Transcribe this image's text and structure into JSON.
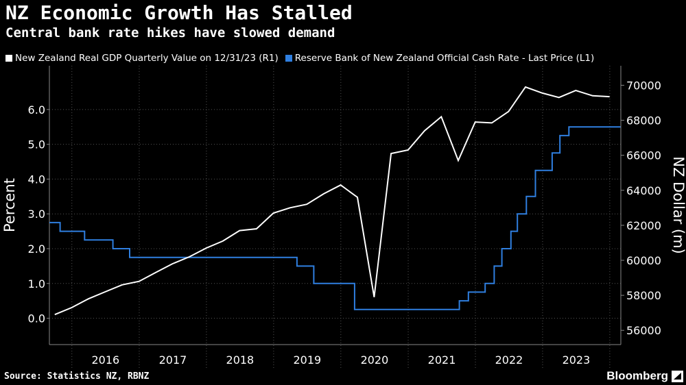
{
  "header": {
    "title": "NZ Economic Growth Has Stalled",
    "subtitle": "Central bank rate hikes have slowed demand"
  },
  "footer": {
    "source": "Source: Statistics NZ, RBNZ",
    "brand": "Bloomberg"
  },
  "colors": {
    "background": "#000000",
    "gdp": "#ffffff",
    "ocr": "#2f7fe0",
    "grid": "#555555",
    "text": "#ffffff"
  },
  "chart_data": {
    "type": "line",
    "title": "NZ Economic Growth Has Stalled",
    "subtitle": "Central bank rate hikes have slowed demand",
    "ylabel_left": "Percent",
    "ylabel_right": "NZ Dollar (m)",
    "ylim_left": [
      -0.6,
      7.1
    ],
    "ylim_right": [
      55500,
      70800
    ],
    "yticks_left": [
      "0.0",
      "1.0",
      "2.0",
      "3.0",
      "4.0",
      "5.0",
      "6.0"
    ],
    "yticks_right": [
      "56000",
      "58000",
      "60000",
      "62000",
      "64000",
      "66000",
      "68000",
      "70000"
    ],
    "x_range": [
      "2015-09-01",
      "2024-03-01"
    ],
    "x_labels": [
      "2016",
      "2017",
      "2018",
      "2019",
      "2020",
      "2021",
      "2022",
      "2023"
    ],
    "grid": true,
    "legend_placement": "top-left",
    "series": [
      {
        "name": "New Zealand Real GDP Quarterly Value on 12/31/23 (R1)",
        "axis": "right",
        "points": [
          [
            "2015-09-30",
            56900
          ],
          [
            "2015-12-31",
            57300
          ],
          [
            "2016-03-31",
            57800
          ],
          [
            "2016-06-30",
            58200
          ],
          [
            "2016-09-30",
            58600
          ],
          [
            "2016-12-31",
            58800
          ],
          [
            "2017-03-31",
            59300
          ],
          [
            "2017-06-30",
            59800
          ],
          [
            "2017-09-30",
            60200
          ],
          [
            "2017-12-31",
            60700
          ],
          [
            "2018-03-31",
            61100
          ],
          [
            "2018-06-30",
            61700
          ],
          [
            "2018-09-30",
            61800
          ],
          [
            "2018-12-31",
            62700
          ],
          [
            "2019-03-31",
            63000
          ],
          [
            "2019-06-30",
            63200
          ],
          [
            "2019-09-30",
            63800
          ],
          [
            "2019-12-31",
            64300
          ],
          [
            "2020-03-31",
            63600
          ],
          [
            "2020-06-30",
            57900
          ],
          [
            "2020-09-30",
            66100
          ],
          [
            "2020-12-31",
            66300
          ],
          [
            "2021-03-31",
            67400
          ],
          [
            "2021-06-30",
            68200
          ],
          [
            "2021-09-30",
            65700
          ],
          [
            "2021-12-31",
            67900
          ],
          [
            "2022-03-31",
            67850
          ],
          [
            "2022-06-30",
            68500
          ],
          [
            "2022-09-30",
            69900
          ],
          [
            "2022-12-31",
            69550
          ],
          [
            "2023-03-31",
            69300
          ],
          [
            "2023-06-30",
            69700
          ],
          [
            "2023-09-30",
            69400
          ],
          [
            "2023-12-31",
            69350
          ]
        ]
      },
      {
        "name": "Reserve Bank of New Zealand Official Cash Rate - Last Price (L1)",
        "axis": "left",
        "points": [
          [
            "2015-09-01",
            2.75
          ],
          [
            "2015-10-29",
            2.75
          ],
          [
            "2015-10-29",
            2.5
          ],
          [
            "2015-12-10",
            2.5
          ],
          [
            "2015-12-10",
            2.5
          ],
          [
            "2016-03-10",
            2.5
          ],
          [
            "2016-03-10",
            2.25
          ],
          [
            "2016-08-11",
            2.25
          ],
          [
            "2016-08-11",
            2.0
          ],
          [
            "2016-11-10",
            2.0
          ],
          [
            "2016-11-10",
            1.75
          ],
          [
            "2019-05-08",
            1.75
          ],
          [
            "2019-05-08",
            1.5
          ],
          [
            "2019-08-07",
            1.5
          ],
          [
            "2019-08-07",
            1.0
          ],
          [
            "2020-03-16",
            1.0
          ],
          [
            "2020-03-16",
            0.25
          ],
          [
            "2021-10-06",
            0.25
          ],
          [
            "2021-10-06",
            0.5
          ],
          [
            "2021-11-24",
            0.5
          ],
          [
            "2021-11-24",
            0.75
          ],
          [
            "2022-02-23",
            0.75
          ],
          [
            "2022-02-23",
            1.0
          ],
          [
            "2022-04-13",
            1.0
          ],
          [
            "2022-04-13",
            1.5
          ],
          [
            "2022-05-25",
            1.5
          ],
          [
            "2022-05-25",
            2.0
          ],
          [
            "2022-07-13",
            2.0
          ],
          [
            "2022-07-13",
            2.5
          ],
          [
            "2022-08-17",
            2.5
          ],
          [
            "2022-08-17",
            3.0
          ],
          [
            "2022-10-05",
            3.0
          ],
          [
            "2022-10-05",
            3.5
          ],
          [
            "2022-11-23",
            3.5
          ],
          [
            "2022-11-23",
            4.25
          ],
          [
            "2023-02-22",
            4.25
          ],
          [
            "2023-02-22",
            4.75
          ],
          [
            "2023-04-05",
            4.75
          ],
          [
            "2023-04-05",
            5.25
          ],
          [
            "2023-05-24",
            5.25
          ],
          [
            "2023-05-24",
            5.5
          ],
          [
            "2024-02-28",
            5.5
          ]
        ]
      }
    ]
  }
}
